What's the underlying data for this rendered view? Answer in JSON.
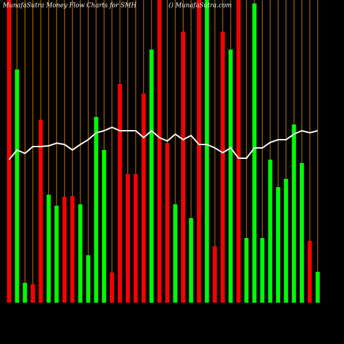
{
  "chart_data": {
    "type": "bar",
    "title": "MunafaSutra  Money Flow  Charts for SMH",
    "watermark": "() MunafaSutra.com",
    "categories": [
      null,
      null,
      null,
      null,
      null,
      null,
      null,
      null,
      null,
      null,
      null,
      null,
      null,
      null,
      null,
      null,
      null,
      null,
      null,
      null,
      null,
      null,
      null,
      null,
      null,
      null,
      null,
      null,
      null,
      null,
      null,
      null,
      null,
      null,
      null,
      null,
      null,
      null,
      null,
      null
    ],
    "ylim": [
      0,
      440
    ],
    "bar_colors": [
      "#ff0000",
      "#00ff00",
      "#00ff00",
      "#ff0000",
      "#ff0000",
      "#00ff00",
      "#00ff00",
      "#ff0000",
      "#ff0000",
      "#00ff00",
      "#00ff00",
      "#00ff00",
      "#00ff00",
      "#ff0000",
      "#ff0000",
      "#ff0000",
      "#ff0000",
      "#ff0000",
      "#00ff00",
      "#ff0000",
      "#ff0000",
      "#00ff00",
      "#ff0000",
      "#00ff00",
      "#ff0000",
      "#00ff00",
      "#ff0000",
      "#ff0000",
      "#00ff00",
      "#ff0000",
      "#00ff00",
      "#00ff00",
      "#00ff00",
      "#00ff00",
      "#00ff00",
      "#00ff00",
      "#00ff00",
      "#00ff00",
      "#ff0000",
      "#00ff00"
    ],
    "separator_color": "#c87800",
    "series": [
      {
        "kind": "bar",
        "values": [
          440,
          339,
          29,
          27,
          266,
          157,
          141,
          154,
          155,
          143,
          69,
          270,
          222,
          44,
          318,
          187,
          187,
          304,
          368,
          440,
          232,
          143,
          394,
          123,
          440,
          440,
          82,
          394,
          368,
          440,
          94,
          435,
          94,
          208,
          168,
          180,
          259,
          203,
          90,
          45
        ]
      },
      {
        "kind": "line",
        "color": "#ffffff",
        "values": [
          208,
          222,
          217,
          227,
          227,
          228,
          232,
          230,
          222,
          230,
          237,
          247,
          250,
          255,
          250,
          250,
          250,
          240,
          250,
          240,
          235,
          245,
          237,
          243,
          230,
          230,
          225,
          218,
          225,
          210,
          210,
          225,
          225,
          233,
          237,
          237,
          245,
          250,
          247,
          250
        ]
      }
    ]
  }
}
